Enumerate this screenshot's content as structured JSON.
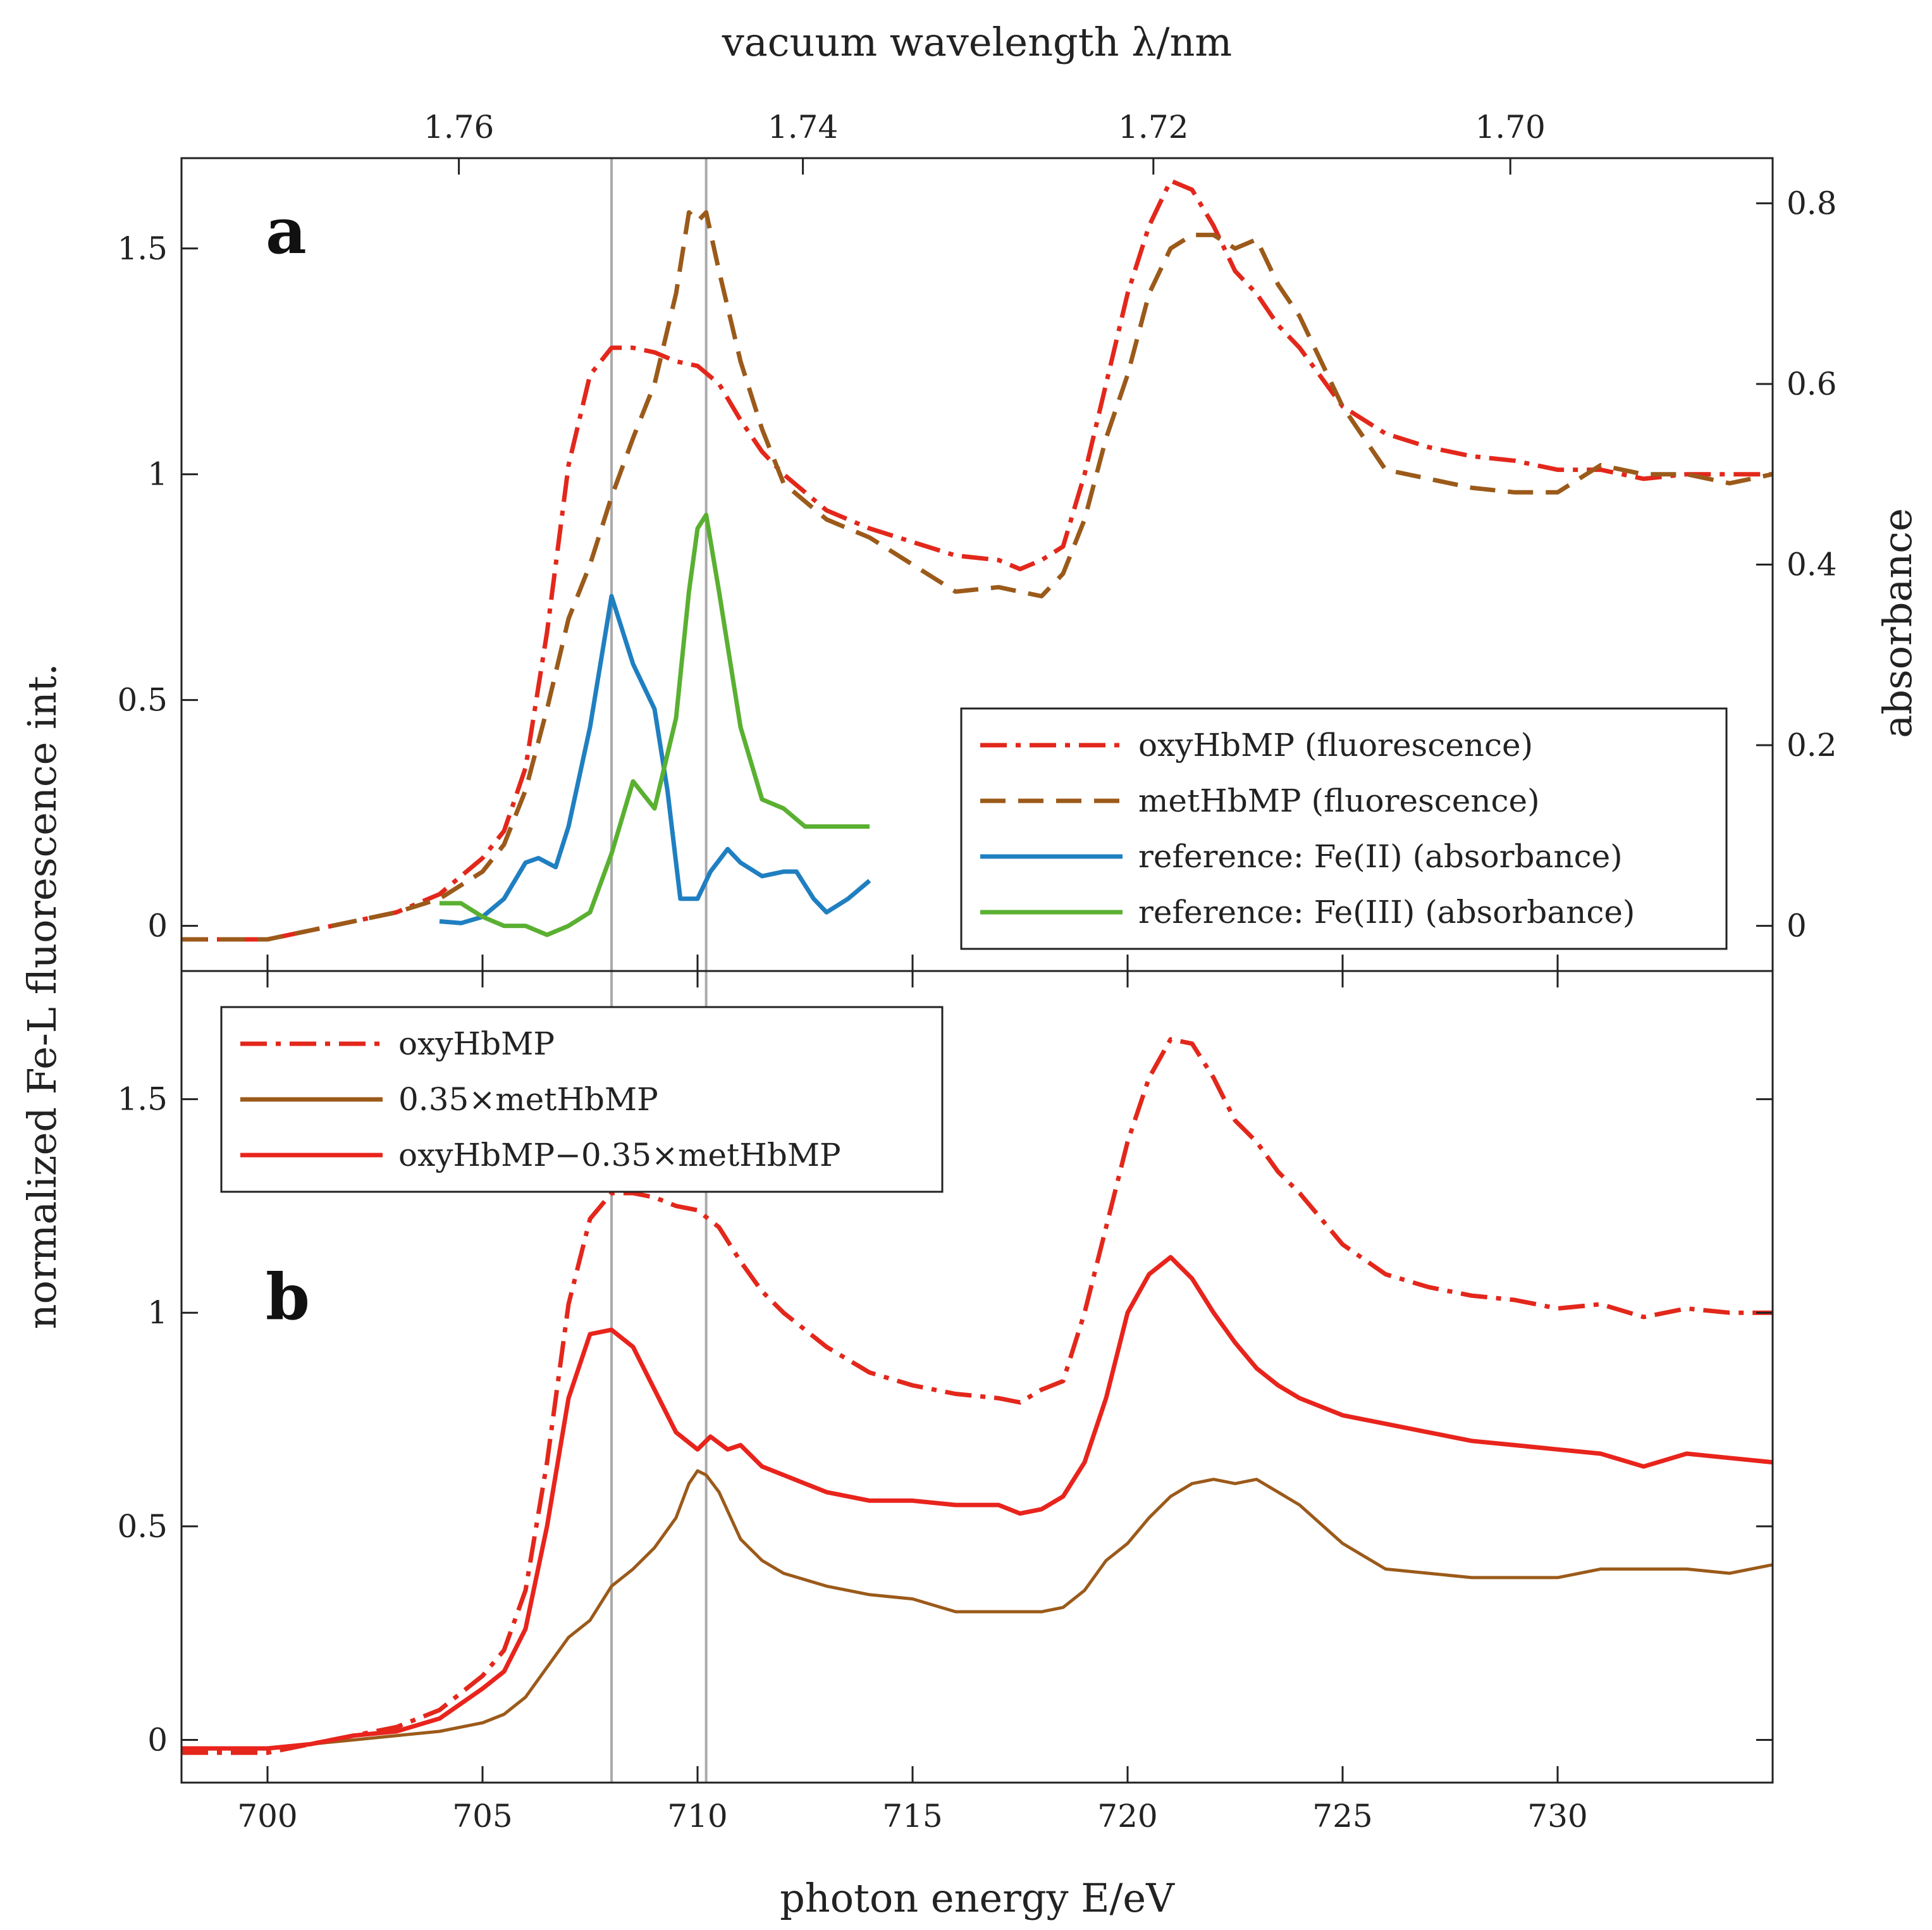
{
  "chart_data": {
    "type": "line",
    "x_axis": {
      "label": "photon energy E/eV",
      "range": [
        698,
        735
      ],
      "ticks": [
        700,
        705,
        710,
        715,
        720,
        725,
        730
      ]
    },
    "top_axis": {
      "label": "vacuum wavelength λ/nm",
      "ticks": [
        1.76,
        1.74,
        1.72,
        1.7
      ],
      "note_tick_energy_eV": [
        704.45,
        712.45,
        720.6,
        728.9
      ]
    },
    "y_label": "normalized Fe-L fluorescence int.",
    "colors": {
      "oxy": "#e3271b",
      "met": "#9b5a1a",
      "fe2": "#1f7fc1",
      "fe3": "#5ab031",
      "diff": "#e8241c",
      "vline": "#aaaaaa"
    },
    "vertical_lines": [
      708.0,
      710.2
    ],
    "panels": [
      {
        "letter": "a",
        "y_range": [
          -0.1,
          1.7
        ],
        "y_ticks": [
          0,
          0.5,
          1,
          1.5
        ],
        "y_tick_labels": [
          "0",
          "0.5",
          "1",
          "1.5"
        ],
        "right_axis": {
          "label": "absorbance",
          "range": [
            -0.05,
            0.85
          ],
          "ticks": [
            0,
            0.2,
            0.4,
            0.6,
            0.8
          ],
          "tick_labels": [
            "0",
            "0.2",
            "0.4",
            "0.6",
            "0.8"
          ]
        },
        "series": [
          {
            "name": "oxyHbMP (fluorescence)",
            "color_key": "oxy",
            "dash": "dashdot",
            "axis": "left",
            "x": [
              698,
              700,
              701,
              702,
              703,
              704,
              705,
              705.5,
              706,
              706.5,
              707,
              707.5,
              708,
              708.5,
              709,
              709.5,
              710,
              710.5,
              711,
              711.5,
              712,
              713,
              714,
              715,
              716,
              717,
              717.5,
              718,
              718.5,
              719,
              719.5,
              720,
              720.5,
              721,
              721.5,
              722,
              722.5,
              723,
              723.5,
              724,
              725,
              726,
              727,
              728,
              729,
              730,
              731,
              732,
              733,
              734,
              735
            ],
            "y": [
              -0.03,
              -0.03,
              -0.01,
              0.01,
              0.03,
              0.07,
              0.15,
              0.21,
              0.35,
              0.65,
              1.02,
              1.22,
              1.28,
              1.28,
              1.27,
              1.25,
              1.24,
              1.2,
              1.12,
              1.05,
              1.0,
              0.92,
              0.88,
              0.85,
              0.82,
              0.81,
              0.79,
              0.81,
              0.84,
              1.0,
              1.2,
              1.4,
              1.55,
              1.65,
              1.63,
              1.55,
              1.45,
              1.4,
              1.33,
              1.28,
              1.15,
              1.09,
              1.06,
              1.04,
              1.03,
              1.01,
              1.01,
              0.99,
              1.0,
              1.0,
              1.0
            ]
          },
          {
            "name": "metHbMP (fluorescence)",
            "color_key": "met",
            "dash": "dashed",
            "axis": "left",
            "x": [
              698,
              700,
              701,
              702,
              703,
              704,
              705,
              705.5,
              706,
              706.5,
              707,
              707.5,
              708,
              708.5,
              709,
              709.5,
              709.8,
              710,
              710.2,
              710.5,
              711,
              711.5,
              712,
              713,
              714,
              715,
              716,
              717,
              718,
              718.5,
              719,
              719.5,
              720,
              720.5,
              721,
              721.5,
              722,
              722.5,
              723,
              723.5,
              724,
              725,
              726,
              727,
              728,
              729,
              730,
              731,
              732,
              733,
              734,
              735
            ],
            "y": [
              -0.03,
              -0.03,
              -0.01,
              0.01,
              0.03,
              0.06,
              0.12,
              0.18,
              0.3,
              0.48,
              0.68,
              0.8,
              0.95,
              1.08,
              1.2,
              1.4,
              1.58,
              1.56,
              1.58,
              1.45,
              1.25,
              1.1,
              0.98,
              0.9,
              0.86,
              0.8,
              0.74,
              0.75,
              0.73,
              0.78,
              0.9,
              1.08,
              1.22,
              1.4,
              1.5,
              1.53,
              1.53,
              1.5,
              1.52,
              1.42,
              1.35,
              1.15,
              1.01,
              0.99,
              0.97,
              0.96,
              0.96,
              1.02,
              1.0,
              1.0,
              0.98,
              1.0
            ]
          },
          {
            "name": "reference: Fe(II) (absorbance)",
            "color_key": "fe2",
            "dash": "solid",
            "axis": "right",
            "x": [
              704,
              704.5,
              705,
              705.5,
              706,
              706.3,
              706.7,
              707,
              707.5,
              708,
              708.5,
              709,
              709.3,
              709.6,
              710,
              710.3,
              710.7,
              711,
              711.5,
              712,
              712.3,
              712.7,
              713,
              713.5,
              714
            ],
            "y": [
              0.005,
              0.003,
              0.01,
              0.03,
              0.07,
              0.075,
              0.065,
              0.11,
              0.22,
              0.365,
              0.29,
              0.24,
              0.15,
              0.03,
              0.03,
              0.06,
              0.085,
              0.07,
              0.055,
              0.06,
              0.06,
              0.03,
              0.015,
              0.03,
              0.05
            ]
          },
          {
            "name": "reference: Fe(III) (absorbance)",
            "color_key": "fe3",
            "dash": "solid",
            "axis": "right",
            "x": [
              704,
              704.5,
              705,
              705.5,
              706,
              706.5,
              707,
              707.5,
              708,
              708.5,
              709,
              709.5,
              709.8,
              710,
              710.2,
              710.5,
              711,
              711.5,
              712,
              712.5,
              713,
              713.5,
              714
            ],
            "y": [
              0.025,
              0.025,
              0.01,
              0.0,
              0.0,
              -0.01,
              0.0,
              0.015,
              0.08,
              0.16,
              0.13,
              0.23,
              0.37,
              0.44,
              0.455,
              0.37,
              0.22,
              0.14,
              0.13,
              0.11,
              0.11,
              0.11,
              0.11
            ]
          }
        ],
        "legend": {
          "position": "lower-right",
          "entries": [
            {
              "label": "oxyHbMP (fluorescence)",
              "color_key": "oxy",
              "dash": "dashdot"
            },
            {
              "label": "metHbMP (fluorescence)",
              "color_key": "met",
              "dash": "dashed"
            },
            {
              "label": "reference: Fe(II) (absorbance)",
              "color_key": "fe2",
              "dash": "solid"
            },
            {
              "label": "reference: Fe(III) (absorbance)",
              "color_key": "fe3",
              "dash": "solid"
            }
          ]
        }
      },
      {
        "letter": "b",
        "y_range": [
          -0.1,
          1.8
        ],
        "y_ticks": [
          0,
          0.5,
          1,
          1.5
        ],
        "y_tick_labels": [
          "0",
          "0.5",
          "1",
          "1.5"
        ],
        "series": [
          {
            "name": "oxyHbMP",
            "color_key": "oxy",
            "dash": "dashdot",
            "axis": "left",
            "x": [
              698,
              700,
              701,
              702,
              703,
              704,
              705,
              705.5,
              706,
              706.5,
              707,
              707.5,
              708,
              708.5,
              709,
              709.5,
              710,
              710.5,
              711,
              711.5,
              712,
              713,
              714,
              715,
              716,
              717,
              717.5,
              718,
              718.5,
              719,
              719.5,
              720,
              720.5,
              721,
              721.5,
              722,
              722.5,
              723,
              723.5,
              724,
              725,
              726,
              727,
              728,
              729,
              730,
              731,
              732,
              733,
              734,
              735
            ],
            "y": [
              -0.03,
              -0.03,
              -0.01,
              0.01,
              0.03,
              0.07,
              0.15,
              0.21,
              0.35,
              0.65,
              1.02,
              1.22,
              1.28,
              1.28,
              1.27,
              1.25,
              1.24,
              1.2,
              1.12,
              1.05,
              1.0,
              0.92,
              0.86,
              0.83,
              0.81,
              0.8,
              0.79,
              0.82,
              0.84,
              1.0,
              1.2,
              1.4,
              1.55,
              1.64,
              1.63,
              1.55,
              1.45,
              1.4,
              1.33,
              1.28,
              1.16,
              1.09,
              1.06,
              1.04,
              1.03,
              1.01,
              1.02,
              0.99,
              1.01,
              1.0,
              1.0
            ]
          },
          {
            "name": "0.35×metHbMP",
            "color_key": "met",
            "dash": "solid",
            "axis": "left",
            "x": [
              698,
              700,
              701,
              702,
              703,
              704,
              705,
              705.5,
              706,
              706.5,
              707,
              707.5,
              708,
              708.5,
              709,
              709.5,
              709.8,
              710,
              710.2,
              710.5,
              711,
              711.5,
              712,
              713,
              714,
              715,
              716,
              717,
              718,
              718.5,
              719,
              719.5,
              720,
              720.5,
              721,
              721.5,
              722,
              722.5,
              723,
              723.5,
              724,
              725,
              726,
              727,
              728,
              729,
              730,
              731,
              732,
              733,
              734,
              735
            ],
            "y": [
              -0.02,
              -0.02,
              -0.01,
              0.0,
              0.01,
              0.02,
              0.04,
              0.06,
              0.1,
              0.17,
              0.24,
              0.28,
              0.36,
              0.4,
              0.45,
              0.52,
              0.6,
              0.63,
              0.62,
              0.58,
              0.47,
              0.42,
              0.39,
              0.36,
              0.34,
              0.33,
              0.3,
              0.3,
              0.3,
              0.31,
              0.35,
              0.42,
              0.46,
              0.52,
              0.57,
              0.6,
              0.61,
              0.6,
              0.61,
              0.58,
              0.55,
              0.46,
              0.4,
              0.39,
              0.38,
              0.38,
              0.38,
              0.4,
              0.4,
              0.4,
              0.39,
              0.41
            ]
          },
          {
            "name": "oxyHbMP−0.35×metHbMP",
            "color_key": "diff",
            "dash": "solid",
            "axis": "left",
            "x": [
              698,
              700,
              701,
              702,
              703,
              704,
              705,
              705.5,
              706,
              706.5,
              707,
              707.5,
              708,
              708.5,
              709,
              709.5,
              710,
              710.3,
              710.7,
              711,
              711.5,
              712,
              713,
              714,
              715,
              716,
              717,
              717.5,
              718,
              718.5,
              719,
              719.5,
              720,
              720.5,
              721,
              721.5,
              722,
              722.5,
              723,
              723.5,
              724,
              725,
              726,
              727,
              728,
              729,
              730,
              731,
              732,
              733,
              734,
              735
            ],
            "y": [
              -0.02,
              -0.02,
              -0.01,
              0.01,
              0.02,
              0.05,
              0.12,
              0.16,
              0.26,
              0.5,
              0.8,
              0.95,
              0.96,
              0.92,
              0.82,
              0.72,
              0.68,
              0.71,
              0.68,
              0.69,
              0.64,
              0.62,
              0.58,
              0.56,
              0.56,
              0.55,
              0.55,
              0.53,
              0.54,
              0.57,
              0.65,
              0.8,
              1.0,
              1.09,
              1.13,
              1.08,
              1.0,
              0.93,
              0.87,
              0.83,
              0.8,
              0.76,
              0.74,
              0.72,
              0.7,
              0.69,
              0.68,
              0.67,
              0.64,
              0.67,
              0.66,
              0.65
            ]
          }
        ],
        "legend": {
          "position": "upper-left",
          "entries": [
            {
              "label": "oxyHbMP",
              "color_key": "oxy",
              "dash": "dashdot"
            },
            {
              "label": "0.35×metHbMP",
              "color_key": "met",
              "dash": "solid"
            },
            {
              "label": "oxyHbMP−0.35×metHbMP",
              "color_key": "diff",
              "dash": "solid"
            }
          ]
        }
      }
    ]
  }
}
